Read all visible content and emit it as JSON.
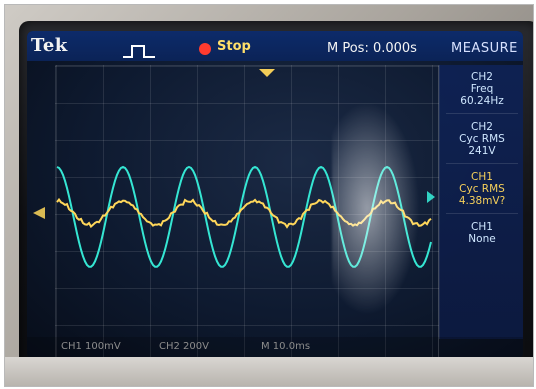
{
  "scope": {
    "brand": "Tek",
    "status": "Stop",
    "m_pos": "M Pos: 0.000s",
    "measure_title": "MEASURE",
    "measurements": [
      {
        "channel": "CH2",
        "type": "Freq",
        "value": "60.24Hz",
        "color": "#cfe7ff"
      },
      {
        "channel": "CH2",
        "type": "Cyc RMS",
        "value": "241V",
        "color": "#cfe7ff"
      },
      {
        "channel": "CH1",
        "type": "Cyc RMS",
        "value": "4.38mV?",
        "color": "#f6d05b"
      },
      {
        "channel": "CH1",
        "type": "None",
        "value": "",
        "color": "#9fb7ff"
      }
    ],
    "bottom_readouts": [
      "CH1 100mV",
      "CH2 200V",
      "M 10.0ms"
    ]
  },
  "colors": {
    "yellow_trace": "#ffd75a",
    "teal_trace": "#35e6d3",
    "stop_dot": "#ff3b2f"
  },
  "icons": {
    "trigger": "trigger-pulse-icon"
  }
}
